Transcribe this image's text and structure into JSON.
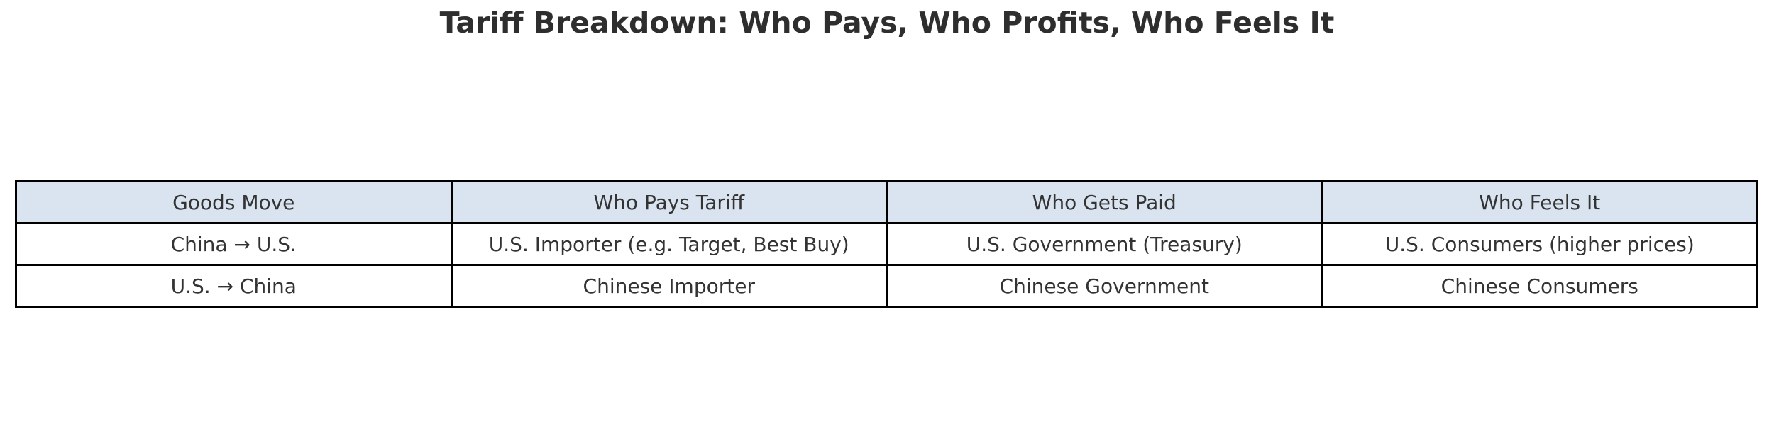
{
  "title": "Tariff Breakdown: Who Pays, Who Profits, Who Feels It",
  "colors": {
    "header_bg": "#d9e4f0",
    "row_bg": "#ffffff",
    "border": "#000000",
    "title_text": "#2e2e2e",
    "cell_text": "#333333",
    "page_bg": "#ffffff"
  },
  "chart_data": {
    "type": "table",
    "title": "Tariff Breakdown: Who Pays, Who Profits, Who Feels It",
    "columns": [
      "Goods Move",
      "Who Pays Tariff",
      "Who Gets Paid",
      "Who Feels It"
    ],
    "rows": [
      [
        "China → U.S.",
        "U.S. Importer (e.g. Target, Best Buy)",
        "U.S. Government (Treasury)",
        "U.S. Consumers (higher prices)"
      ],
      [
        "U.S. → China",
        "Chinese Importer",
        "Chinese Government",
        "Chinese Consumers"
      ]
    ],
    "layout": {
      "header_fill": "#d9e4f0",
      "body_fill": "#ffffff",
      "grid": "solid-black",
      "columns_equal_width": true,
      "text_align": "center"
    }
  }
}
